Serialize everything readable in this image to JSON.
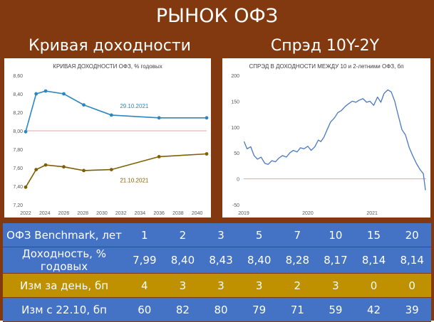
{
  "header": {
    "title": "РЫНОК ОФЗ"
  },
  "left_panel": {
    "heading": "Кривая доходности"
  },
  "right_panel": {
    "heading": "Спрэд 10Y-2Y"
  },
  "colors": {
    "background": "#82390f",
    "table_blue": "#4472c4",
    "table_gold": "#bf9000",
    "curve_recent": "#2e86c1",
    "curve_previous": "#7f6000",
    "reference_line": "#e8a0a0",
    "spread_line": "#4a78c2"
  },
  "chart_data": [
    {
      "type": "line",
      "title": "КРИВАЯ ДОХОДНОСТИ ОФЗ, % годовых",
      "xlabel": "",
      "ylabel": "",
      "xlim": [
        2022,
        2041
      ],
      "ylim": [
        7.2,
        8.6
      ],
      "x_ticks": [
        "2022",
        "2024",
        "2026",
        "2028",
        "2030",
        "2032",
        "2034",
        "2036",
        "2038",
        "2040"
      ],
      "y_ticks": [
        "7,20",
        "7,40",
        "7,60",
        "7,80",
        "8,00",
        "8,20",
        "8,40",
        "8,60"
      ],
      "reference_line": 8.0,
      "grid": false,
      "series": [
        {
          "name": "29.10.2021",
          "color": "#2e86c1",
          "x": [
            2022.0,
            2023.1,
            2024.1,
            2026.0,
            2028.1,
            2031.0,
            2036.0,
            2041.0
          ],
          "y": [
            7.99,
            8.4,
            8.43,
            8.4,
            8.28,
            8.17,
            8.14,
            8.14
          ]
        },
        {
          "name": "21.10.2021",
          "color": "#7f6000",
          "x": [
            2022.0,
            2023.1,
            2024.1,
            2026.0,
            2028.1,
            2031.0,
            2036.0,
            2041.0
          ],
          "y": [
            7.39,
            7.58,
            7.63,
            7.61,
            7.57,
            7.58,
            7.72,
            7.75
          ]
        }
      ]
    },
    {
      "type": "line",
      "title": "СПРЭД В ДОХОДНОСТИ МЕЖДУ 10 и 2-летними ОФЗ, бп",
      "xlabel": "",
      "ylabel": "",
      "xlim": [
        "2019-01-01",
        "2021-11-05"
      ],
      "ylim": [
        -50,
        200
      ],
      "x_ticks": [
        "2019",
        "2020",
        "2021"
      ],
      "y_ticks": [
        "-50",
        "0",
        "50",
        "100",
        "150",
        "200"
      ],
      "reference_line": 0,
      "grid": false,
      "series": [
        {
          "name": "",
          "color": "#4a78c2",
          "x": [
            "2019-01-03",
            "2019-01-20",
            "2019-02-10",
            "2019-03-01",
            "2019-03-20",
            "2019-04-10",
            "2019-05-01",
            "2019-05-20",
            "2019-06-10",
            "2019-07-01",
            "2019-07-20",
            "2019-08-10",
            "2019-09-01",
            "2019-09-20",
            "2019-10-10",
            "2019-11-01",
            "2019-11-20",
            "2019-12-10",
            "2020-01-01",
            "2020-01-20",
            "2020-02-10",
            "2020-03-01",
            "2020-03-15",
            "2020-04-01",
            "2020-04-20",
            "2020-05-10",
            "2020-06-01",
            "2020-06-20",
            "2020-07-10",
            "2020-08-01",
            "2020-08-20",
            "2020-09-10",
            "2020-10-01",
            "2020-10-20",
            "2020-11-10",
            "2020-12-01",
            "2020-12-20",
            "2021-01-10",
            "2021-02-01",
            "2021-02-20",
            "2021-03-10",
            "2021-04-01",
            "2021-04-20",
            "2021-05-10",
            "2021-06-01",
            "2021-06-20",
            "2021-07-10",
            "2021-08-01",
            "2021-08-20",
            "2021-09-10",
            "2021-10-01",
            "2021-10-20",
            "2021-11-01"
          ],
          "y": [
            72,
            58,
            62,
            45,
            38,
            42,
            30,
            28,
            35,
            33,
            40,
            45,
            42,
            50,
            55,
            52,
            60,
            58,
            63,
            55,
            62,
            75,
            72,
            80,
            95,
            110,
            118,
            128,
            132,
            140,
            145,
            150,
            148,
            152,
            155,
            148,
            150,
            142,
            158,
            148,
            165,
            172,
            168,
            150,
            120,
            95,
            85,
            60,
            45,
            30,
            18,
            10,
            -22
          ]
        }
      ]
    }
  ],
  "table": {
    "rows": [
      {
        "label": "ОФЗ Benchmark, лет",
        "style": "blue",
        "values": [
          "1",
          "2",
          "3",
          "5",
          "7",
          "10",
          "15",
          "20"
        ]
      },
      {
        "label": "Доходность, % годовых",
        "style": "blue",
        "values": [
          "7,99",
          "8,40",
          "8,43",
          "8,40",
          "8,28",
          "8,17",
          "8,14",
          "8,14"
        ]
      },
      {
        "label": "Изм за день, бп",
        "style": "gold",
        "values": [
          "4",
          "3",
          "3",
          "3",
          "2",
          "3",
          "0",
          "0"
        ]
      },
      {
        "label": "Изм с 22.10, бп",
        "style": "blue",
        "values": [
          "60",
          "82",
          "80",
          "79",
          "71",
          "59",
          "42",
          "39"
        ]
      }
    ]
  }
}
